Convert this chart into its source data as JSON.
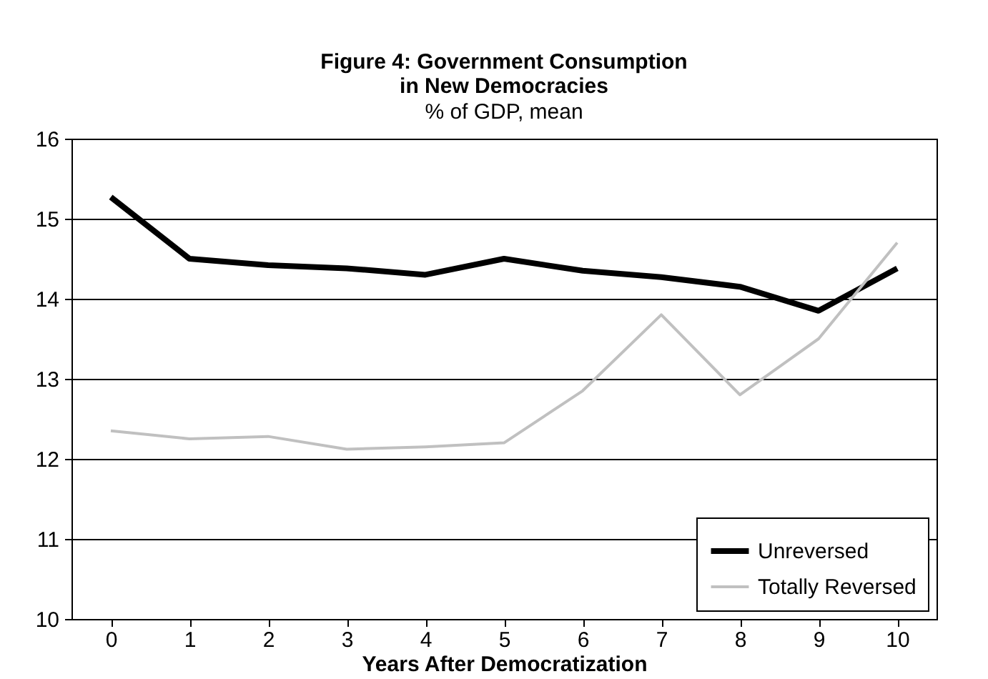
{
  "chart_data": {
    "type": "line",
    "title": "Figure 4: Government Consumption\nin New Democracies",
    "subtitle": "% of GDP, mean",
    "xlabel": "Years After Democratization",
    "categories": [
      "0",
      "1",
      "2",
      "3",
      "4",
      "5",
      "6",
      "7",
      "8",
      "9",
      "10"
    ],
    "series": [
      {
        "name": "Unreversed",
        "color": "#000000",
        "values": [
          15.27,
          14.5,
          14.42,
          14.38,
          14.3,
          14.5,
          14.35,
          14.27,
          14.15,
          13.85,
          14.38
        ]
      },
      {
        "name": "Totally Reversed",
        "color": "#c0c0c0",
        "values": [
          12.35,
          12.25,
          12.28,
          12.12,
          12.15,
          12.2,
          12.85,
          13.8,
          12.8,
          13.5,
          14.7
        ]
      }
    ],
    "ylim": [
      10,
      16
    ],
    "yticks": [
      10,
      11,
      12,
      13,
      14,
      15,
      16
    ],
    "grid": "y",
    "legend": "bottom right",
    "marker": "none"
  }
}
